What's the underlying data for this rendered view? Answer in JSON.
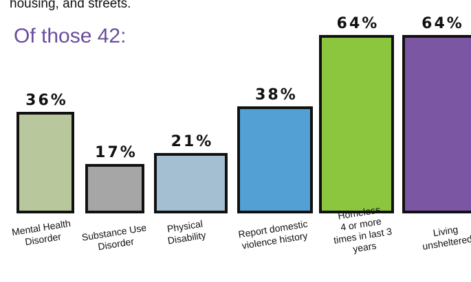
{
  "intro_text": "housing, and streets.",
  "heading": "Of those 42:",
  "chart_data": {
    "type": "bar",
    "title": "Of those 42:",
    "xlabel": "",
    "ylabel": "",
    "ylim": [
      0,
      64
    ],
    "grid": false,
    "categories": [
      [
        "Mental Health",
        "Disorder"
      ],
      [
        "Substance Use",
        "Disorder"
      ],
      [
        "Physical",
        "Disability"
      ],
      [
        "Report domestic",
        "violence history"
      ],
      [
        "Homeless",
        "4 or more",
        "times in last 3",
        "years"
      ],
      [
        "Living",
        "unsheltered"
      ]
    ],
    "values": [
      36,
      17,
      21,
      38,
      64,
      64
    ],
    "labels": [
      "36%",
      "17%",
      "21%",
      "38%",
      "64%",
      "64%"
    ],
    "colors": [
      "#b8c89c",
      "#a6a6a6",
      "#a3bfd1",
      "#52a0d4",
      "#8cc63f",
      "#7a56a3"
    ]
  }
}
